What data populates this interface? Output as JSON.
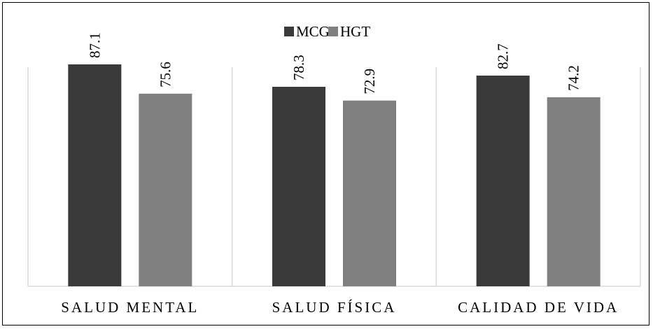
{
  "chart_data": {
    "type": "bar",
    "categories": [
      "SALUD MENTAL",
      "SALUD FÍSICA",
      "CALIDAD DE VIDA"
    ],
    "series": [
      {
        "name": "MCG",
        "values": [
          87.1,
          78.3,
          82.7
        ],
        "color": "#3a3a3a"
      },
      {
        "name": "HGT",
        "values": [
          75.6,
          72.9,
          74.2
        ],
        "color": "#808080"
      }
    ],
    "ylim": [
      0,
      100
    ],
    "legend_position": "top-center",
    "grid": false,
    "colors": {
      "separator": "#d9d9d9",
      "axis": "#d9d9d9",
      "border": "#000000"
    }
  }
}
